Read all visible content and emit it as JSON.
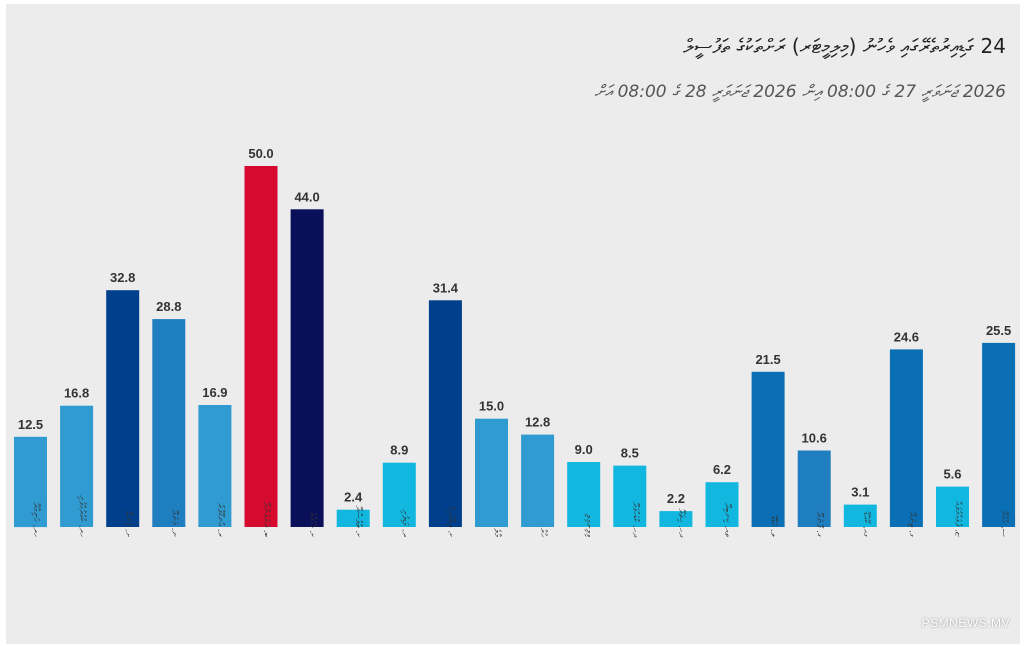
{
  "header": {
    "title": "24 ގަޑިއިރުތެރޭގައި ވެހުނު (މިލިމީޓަރ) ރަށްތަކުގެ ތަފުސީލް",
    "subtitle": "2026 ޖަނަވަރީ 27 ގެ 08:00 އިން 2026 ޖަނަވަރީ 28 ގެ 08:00 އަށް"
  },
  "watermark": "PSMNEWS.MV",
  "chart_data": {
    "type": "bar",
    "title": "24 ގަޑިއިރުތެރޭގައި ވެހުނު (މިލިމީޓަރ) ރަށްތަކުގެ ތަފުސީލް",
    "subtitle": "2026 ޖަނަވަރީ 27 ގެ 08:00 އިން 2026 ޖަނަވަރީ 28 ގެ 08:00 އަށް",
    "categories": [
      "ހދ. ހަނިމާދޫ",
      "ހދ. ކުޅުދުއްފުށި",
      "ށ. ފުނަދޫ",
      "ނ. މަނަދޫ",
      "ރ. އުނގޫފާރު",
      "ބ. ދަރަވަންދޫ",
      "ކ. ހުޅުމާލެ",
      "ކ. ތުލުސްދޫ",
      "ދ. މަޑިފުށި",
      "ކ. އިބްރާހިމް",
      "މާލެ",
      "ހުރާ",
      "ވިލިނގިލި",
      "ދހ. ކުޑަހުވަދޫ",
      "ދހ. ހިތަދޫ",
      "ތއ. ކިނބިދޫ",
      "ލ. ކަޑްޑޫ",
      "ގ. ފޮނަދޫ",
      "ގއ. ކޫއްޑޫ",
      "ގ. ތިނަދޫ",
      "ޏ. ފުވައްމުލައް",
      "ސ. ހުޅުދޫ"
    ],
    "values": [
      12.5,
      16.8,
      32.8,
      28.8,
      16.9,
      50.0,
      44.0,
      2.4,
      8.9,
      31.4,
      15.0,
      12.8,
      9.0,
      8.5,
      2.2,
      6.2,
      21.5,
      10.6,
      3.1,
      24.6,
      5.6,
      25.5
    ],
    "value_labels": [
      "12.5",
      "16.8",
      "32.8",
      "28.8",
      "16.9",
      "50.0",
      "44.0",
      "2.4",
      "8.9",
      "31.4",
      "15.0",
      "12.8",
      "9.0",
      "8.5",
      "2.2",
      "6.2",
      "21.5",
      "10.6",
      "3.1",
      "24.6",
      "5.6",
      "25.5"
    ],
    "colors": [
      "#2f9bd0",
      "#2f9bd0",
      "#003f8c",
      "#1f7ec0",
      "#2f9bd0",
      "#d50a2e",
      "#0a0f5a",
      "#12b7e0",
      "#12b7e0",
      "#003f8c",
      "#2f9bd0",
      "#2f9bd0",
      "#12b7e0",
      "#12b7e0",
      "#12b7e0",
      "#12b7e0",
      "#0a6fb5",
      "#1f7ec0",
      "#12b7e0",
      "#0a6fb5",
      "#12b7e0",
      "#0a6fb5"
    ],
    "ylim": [
      0,
      50
    ],
    "grid": false,
    "legend": "none"
  }
}
